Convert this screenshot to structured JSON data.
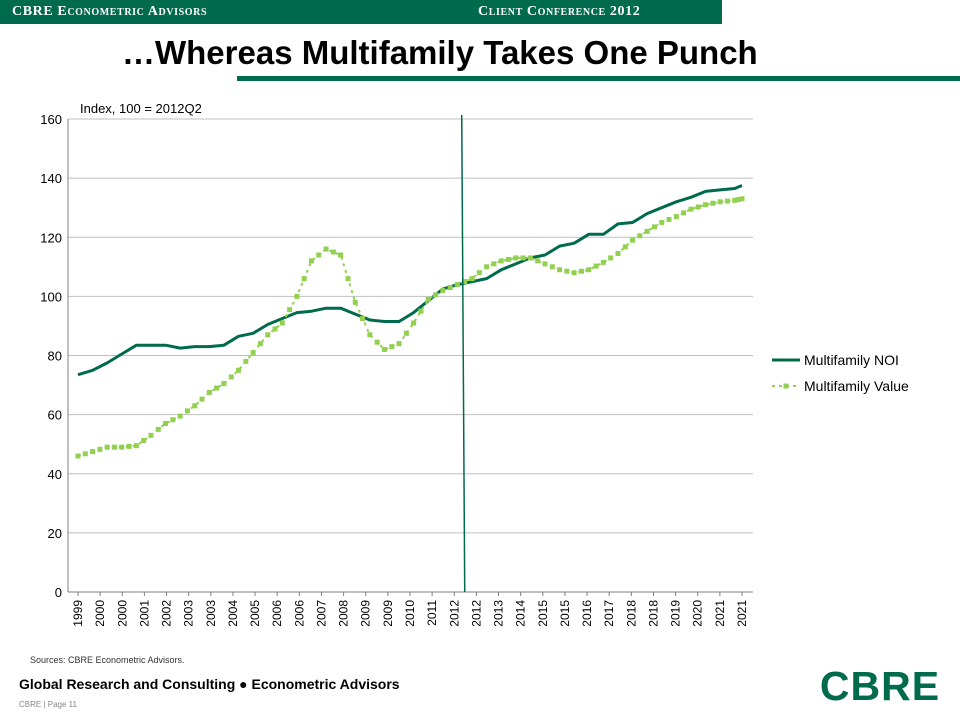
{
  "header": {
    "left_label": "CBRE Econometric Advisors",
    "right_label": "Client Conference 2012"
  },
  "slide": {
    "title": "…Whereas Multifamily Takes One Punch"
  },
  "footer": {
    "sources": "Sources: CBRE Econometric Advisors.",
    "division": "Global Research and Consulting ● Econometric Advisors",
    "page": "CBRE  |  Page 11",
    "logo_text": "CBRE"
  },
  "colors": {
    "brand": "#006A4D",
    "noi": "#006A4D",
    "value": "#92D050",
    "grid": "#BFBFBF"
  },
  "chart_data": {
    "type": "line",
    "unit_label": "Index, 100 = 2012Q2",
    "x_tick_labels": [
      "1999",
      "2000",
      "2000",
      "2001",
      "2002",
      "2003",
      "2003",
      "2004",
      "2005",
      "2006",
      "2006",
      "2007",
      "2008",
      "2009",
      "2009",
      "2010",
      "2011",
      "2012",
      "2012",
      "2013",
      "2014",
      "2015",
      "2015",
      "2016",
      "2017",
      "2018",
      "2018",
      "2019",
      "2020",
      "2021",
      "2021"
    ],
    "y_ticks": [
      0,
      20,
      40,
      60,
      80,
      100,
      120,
      140,
      160
    ],
    "ylim": [
      0,
      160
    ],
    "x_range": [
      1999.0,
      2021.75
    ],
    "divider_at": 2012.25,
    "grid": "horizontal",
    "legend_position": "right",
    "series": [
      {
        "name": "Multifamily NOI",
        "style": "solid",
        "x": [
          1999.0,
          1999.5,
          2000.0,
          2000.5,
          2001.0,
          2001.5,
          2002.0,
          2002.5,
          2003.0,
          2003.5,
          2004.0,
          2004.5,
          2005.0,
          2005.5,
          2006.0,
          2006.5,
          2007.0,
          2007.5,
          2008.0,
          2008.5,
          2009.0,
          2009.5,
          2010.0,
          2010.5,
          2011.0,
          2011.5,
          2012.0,
          2012.5,
          2013.0,
          2013.5,
          2014.0,
          2014.5,
          2015.0,
          2015.5,
          2016.0,
          2016.5,
          2017.0,
          2017.5,
          2018.0,
          2018.5,
          2019.0,
          2019.5,
          2020.0,
          2020.5,
          2021.0,
          2021.5,
          2021.75
        ],
        "y": [
          73.5,
          75,
          77.5,
          80.5,
          83.5,
          83.5,
          83.5,
          82.5,
          83,
          83,
          83.5,
          86.5,
          87.5,
          90.5,
          92.5,
          94.5,
          95,
          96,
          96,
          94,
          92,
          91.5,
          91.5,
          94.5,
          98.5,
          102.5,
          104,
          105,
          106,
          109,
          111,
          113,
          114,
          117,
          118,
          121,
          121,
          124.5,
          125,
          128,
          130,
          132,
          133.5,
          135.5,
          136,
          136.5,
          137.5
        ]
      },
      {
        "name": "Multifamily Value",
        "style": "dashed-square-markers",
        "x": [
          1999.0,
          1999.5,
          2000.0,
          2000.5,
          2001.0,
          2001.5,
          2002.0,
          2002.5,
          2003.0,
          2003.5,
          2004.0,
          2004.5,
          2005.0,
          2005.5,
          2006.0,
          2006.5,
          2007.0,
          2007.5,
          2008.0,
          2008.5,
          2009.0,
          2009.5,
          2010.0,
          2010.5,
          2011.0,
          2011.5,
          2012.0,
          2012.5,
          2013.0,
          2013.5,
          2014.0,
          2014.5,
          2015.0,
          2015.5,
          2016.0,
          2016.5,
          2017.0,
          2017.5,
          2018.0,
          2018.5,
          2019.0,
          2019.5,
          2020.0,
          2020.5,
          2021.0,
          2021.5,
          2021.75
        ],
        "y": [
          46,
          47.5,
          49,
          49,
          49.5,
          53,
          57,
          59.5,
          63,
          67.5,
          70.5,
          75,
          81,
          87,
          91,
          100,
          112,
          116,
          114,
          98,
          87,
          82,
          84,
          91,
          99,
          102,
          104,
          106,
          110,
          112,
          113,
          113,
          111,
          109,
          108,
          109,
          111.5,
          114.5,
          119,
          122,
          125,
          127,
          129.5,
          131,
          132,
          132.5,
          133
        ]
      }
    ]
  }
}
